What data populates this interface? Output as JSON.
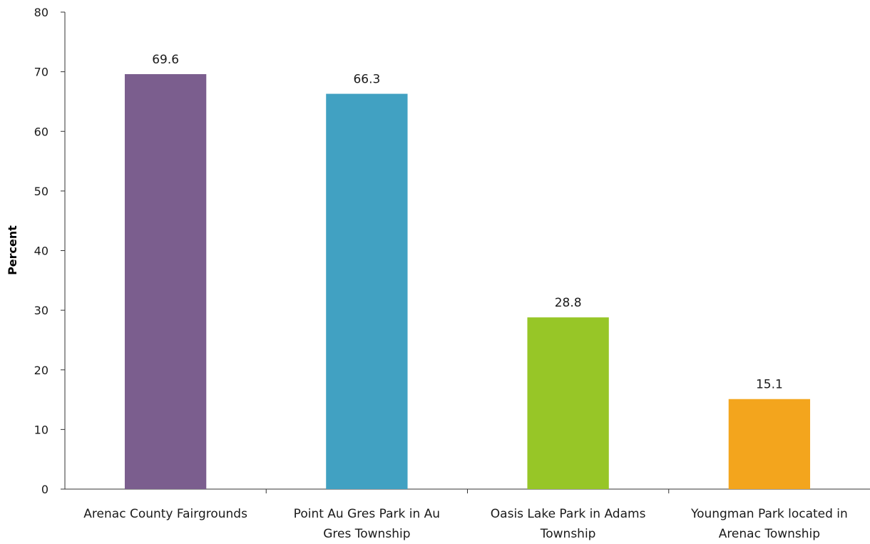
{
  "chart_data": {
    "type": "bar",
    "ylabel": "Percent",
    "ylim": [
      0,
      80
    ],
    "yticks": [
      0,
      10,
      20,
      30,
      40,
      50,
      60,
      70,
      80
    ],
    "grid": false,
    "categories": [
      [
        "Arenac County Fairgrounds"
      ],
      [
        "Point Au Gres Park in Au",
        "Gres Township"
      ],
      [
        "Oasis Lake Park in Adams",
        "Township"
      ],
      [
        "Youngman Park located in",
        "Arenac Township"
      ]
    ],
    "values": [
      69.6,
      66.3,
      28.8,
      15.1
    ],
    "data_labels": [
      "69.6",
      "66.3",
      "28.8",
      "15.1"
    ],
    "colors": [
      "#7b5e8e",
      "#41a1c2",
      "#97c627",
      "#f3a51d"
    ]
  }
}
